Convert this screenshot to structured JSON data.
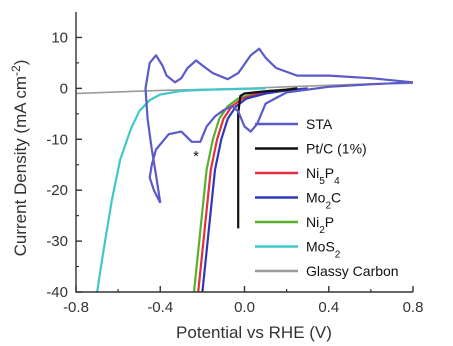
{
  "chart_data": {
    "type": "line",
    "title": "",
    "xlabel": "Potential vs RHE (V)",
    "ylabel": "Current Density (mA cm⁻²)",
    "xlim": [
      -0.8,
      0.8
    ],
    "ylim": [
      -40,
      15
    ],
    "xticks": [
      -0.8,
      -0.4,
      0.0,
      0.4,
      0.8
    ],
    "yticks": [
      10,
      0,
      -10,
      -20,
      -30,
      -40
    ],
    "xtick_labels": [
      "-0.8",
      "-0.4",
      "0.0",
      "0.4",
      "0.8"
    ],
    "ytick_labels": [
      "10",
      "0",
      "-10",
      "-20",
      "-30",
      "-40"
    ],
    "grid": false,
    "legend_position": "right",
    "annotations": [
      {
        "text": "*",
        "x": -0.23,
        "y": -13.3
      }
    ],
    "series": [
      {
        "name": "Glassy Carbon",
        "label_parts": [
          {
            "t": "Glassy Carbon"
          }
        ],
        "color": "#9a9a9a",
        "points": [
          [
            -0.8,
            -1.0
          ],
          [
            -0.6,
            -0.7
          ],
          [
            -0.4,
            -0.4
          ],
          [
            -0.2,
            -0.2
          ],
          [
            0.0,
            0.0
          ],
          [
            0.2,
            0.3
          ],
          [
            0.4,
            0.6
          ],
          [
            0.6,
            0.9
          ],
          [
            0.8,
            1.0
          ]
        ]
      },
      {
        "name": "MoS2",
        "label_parts": [
          {
            "t": "MoS"
          },
          {
            "t": "2",
            "sub": true
          }
        ],
        "color": "#40c8c8",
        "points": [
          [
            -0.7,
            -40
          ],
          [
            -0.67,
            -32
          ],
          [
            -0.63,
            -22
          ],
          [
            -0.59,
            -14
          ],
          [
            -0.54,
            -8
          ],
          [
            -0.5,
            -4.5
          ],
          [
            -0.45,
            -2.3
          ],
          [
            -0.4,
            -1.2
          ],
          [
            -0.3,
            -0.5
          ],
          [
            -0.2,
            -0.3
          ],
          [
            0.0,
            -0.1
          ],
          [
            0.1,
            0.0
          ]
        ]
      },
      {
        "name": "Ni2P",
        "label_parts": [
          {
            "t": "Ni"
          },
          {
            "t": "2",
            "sub": true
          },
          {
            "t": "P"
          }
        ],
        "color": "#5ab02e",
        "points": [
          [
            -0.24,
            -40
          ],
          [
            -0.22,
            -32
          ],
          [
            -0.2,
            -24
          ],
          [
            -0.18,
            -16
          ],
          [
            -0.15,
            -10
          ],
          [
            -0.12,
            -6
          ],
          [
            -0.08,
            -3.5
          ],
          [
            -0.03,
            -2.0
          ],
          [
            0.05,
            -1.0
          ],
          [
            0.15,
            -0.4
          ],
          [
            0.25,
            0.0
          ]
        ]
      },
      {
        "name": "Ni5P4",
        "label_parts": [
          {
            "t": "Ni"
          },
          {
            "t": "5",
            "sub": true
          },
          {
            "t": "P"
          },
          {
            "t": "4",
            "sub": true
          }
        ],
        "color": "#e03040",
        "points": [
          [
            -0.22,
            -40
          ],
          [
            -0.2,
            -32
          ],
          [
            -0.18,
            -24
          ],
          [
            -0.16,
            -16
          ],
          [
            -0.13,
            -10
          ],
          [
            -0.1,
            -6
          ],
          [
            -0.06,
            -3.5
          ],
          [
            -0.01,
            -2.0
          ],
          [
            0.07,
            -1.0
          ],
          [
            0.17,
            -0.4
          ],
          [
            0.25,
            0.0
          ]
        ]
      },
      {
        "name": "Mo2C",
        "label_parts": [
          {
            "t": "Mo"
          },
          {
            "t": "2",
            "sub": true
          },
          {
            "t": "C"
          }
        ],
        "color": "#3038b8",
        "points": [
          [
            -0.2,
            -40
          ],
          [
            -0.18,
            -32
          ],
          [
            -0.16,
            -24
          ],
          [
            -0.14,
            -16
          ],
          [
            -0.11,
            -10
          ],
          [
            -0.08,
            -6
          ],
          [
            -0.04,
            -3.5
          ],
          [
            0.01,
            -2.0
          ],
          [
            0.1,
            -1.0
          ],
          [
            0.2,
            -0.4
          ],
          [
            0.3,
            0.0
          ]
        ]
      },
      {
        "name": "Pt/C (1%)",
        "label_parts": [
          {
            "t": "Pt/C (1%)"
          }
        ],
        "color": "#111111",
        "points": [
          [
            -0.03,
            -27.5
          ],
          [
            -0.03,
            -15
          ],
          [
            -0.03,
            -5
          ],
          [
            -0.02,
            -1.5
          ],
          [
            0.0,
            -1.0
          ],
          [
            0.05,
            -0.8
          ],
          [
            0.12,
            -0.5
          ],
          [
            0.2,
            -0.3
          ],
          [
            0.25,
            0.0
          ]
        ]
      },
      {
        "name": "STA",
        "label_parts": [
          {
            "t": "STA"
          }
        ],
        "color": "#5a5ac8",
        "points": [
          [
            -0.4,
            -22.5
          ],
          [
            -0.43,
            -20
          ],
          [
            -0.45,
            -17.5
          ],
          [
            -0.44,
            -15
          ],
          [
            -0.42,
            -12
          ],
          [
            -0.36,
            -9
          ],
          [
            -0.3,
            -8.5
          ],
          [
            -0.25,
            -10.5
          ],
          [
            -0.21,
            -10.5
          ],
          [
            -0.18,
            -7.5
          ],
          [
            -0.14,
            -5.5
          ],
          [
            -0.1,
            -4.3
          ],
          [
            -0.06,
            -3.5
          ],
          [
            -0.03,
            -4.5
          ],
          [
            0.0,
            -7.5
          ],
          [
            0.03,
            -8.5
          ],
          [
            0.06,
            -7.0
          ],
          [
            0.1,
            -3.0
          ],
          [
            0.2,
            -0.8
          ],
          [
            0.4,
            0.3
          ],
          [
            0.6,
            0.8
          ],
          [
            0.8,
            1.2
          ],
          [
            0.6,
            2.0
          ],
          [
            0.4,
            2.5
          ],
          [
            0.25,
            2.5
          ],
          [
            0.15,
            4.0
          ],
          [
            0.1,
            6.0
          ],
          [
            0.07,
            7.8
          ],
          [
            0.03,
            6.5
          ],
          [
            -0.03,
            3.0
          ],
          [
            -0.08,
            1.8
          ],
          [
            -0.15,
            3.0
          ],
          [
            -0.2,
            4.5
          ],
          [
            -0.23,
            5.5
          ],
          [
            -0.27,
            4.0
          ],
          [
            -0.3,
            2.0
          ],
          [
            -0.33,
            1.2
          ],
          [
            -0.37,
            2.5
          ],
          [
            -0.39,
            4.5
          ],
          [
            -0.42,
            6.5
          ],
          [
            -0.45,
            5.0
          ],
          [
            -0.47,
            0.0
          ],
          [
            -0.46,
            -6.0
          ],
          [
            -0.44,
            -12.0
          ],
          [
            -0.42,
            -17.0
          ],
          [
            -0.4,
            -22.5
          ]
        ]
      }
    ],
    "legend_order": [
      "STA",
      "Pt/C (1%)",
      "Ni5P4",
      "Mo2C",
      "Ni2P",
      "MoS2",
      "Glassy Carbon"
    ]
  }
}
